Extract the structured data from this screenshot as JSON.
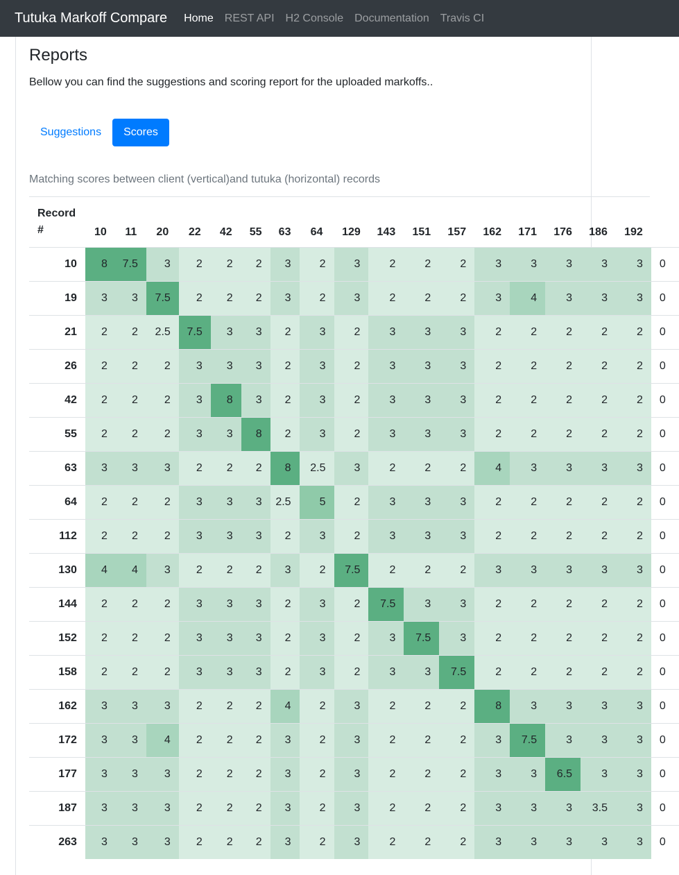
{
  "navbar": {
    "brand": "Tutuka Markoff Compare",
    "links": [
      {
        "label": "Home",
        "active": true
      },
      {
        "label": "REST API",
        "active": false
      },
      {
        "label": "H2 Console",
        "active": false
      },
      {
        "label": "Documentation",
        "active": false
      },
      {
        "label": "Travis CI",
        "active": false
      }
    ]
  },
  "page": {
    "title": "Reports",
    "description": "Bellow you can find the suggestions and scoring report for the uploaded markoffs..",
    "tabs": [
      {
        "label": "Suggestions",
        "active": false
      },
      {
        "label": "Scores",
        "active": true
      }
    ],
    "caption": "Matching scores between client (vertical)and tutuka (horizontal) records"
  },
  "colors": {
    "navbar_bg": "#343a40",
    "primary": "#007bff",
    "score_low": "#d7ece1",
    "score_mid": "#c2e0d0",
    "score_high": "#5baf82"
  },
  "table": {
    "corner_label": [
      "Record",
      "#"
    ],
    "columns": [
      "10",
      "11",
      "20",
      "22",
      "42",
      "55",
      "63",
      "64",
      "129",
      "143",
      "151",
      "157",
      "162",
      "171",
      "176",
      "186",
      "192"
    ],
    "rows": [
      {
        "id": "10",
        "scores": [
          "8",
          "7.5",
          "3",
          "2",
          "2",
          "2",
          "3",
          "2",
          "3",
          "2",
          "2",
          "2",
          "3",
          "3",
          "3",
          "3",
          "3"
        ],
        "extra": "0"
      },
      {
        "id": "19",
        "scores": [
          "3",
          "3",
          "7.5",
          "2",
          "2",
          "2",
          "3",
          "2",
          "3",
          "2",
          "2",
          "2",
          "3",
          "4",
          "3",
          "3",
          "3"
        ],
        "extra": "0"
      },
      {
        "id": "21",
        "scores": [
          "2",
          "2",
          "2.5",
          "7.5",
          "3",
          "3",
          "2",
          "3",
          "2",
          "3",
          "3",
          "3",
          "2",
          "2",
          "2",
          "2",
          "2"
        ],
        "extra": "0"
      },
      {
        "id": "26",
        "scores": [
          "2",
          "2",
          "2",
          "3",
          "3",
          "3",
          "2",
          "3",
          "2",
          "3",
          "3",
          "3",
          "2",
          "2",
          "2",
          "2",
          "2"
        ],
        "extra": "0"
      },
      {
        "id": "42",
        "scores": [
          "2",
          "2",
          "2",
          "3",
          "8",
          "3",
          "2",
          "3",
          "2",
          "3",
          "3",
          "3",
          "2",
          "2",
          "2",
          "2",
          "2"
        ],
        "extra": "0"
      },
      {
        "id": "55",
        "scores": [
          "2",
          "2",
          "2",
          "3",
          "3",
          "8",
          "2",
          "3",
          "2",
          "3",
          "3",
          "3",
          "2",
          "2",
          "2",
          "2",
          "2"
        ],
        "extra": "0"
      },
      {
        "id": "63",
        "scores": [
          "3",
          "3",
          "3",
          "2",
          "2",
          "2",
          "8",
          "2.5",
          "3",
          "2",
          "2",
          "2",
          "4",
          "3",
          "3",
          "3",
          "3"
        ],
        "extra": "0"
      },
      {
        "id": "64",
        "scores": [
          "2",
          "2",
          "2",
          "3",
          "3",
          "3",
          "2.5",
          "5",
          "2",
          "3",
          "3",
          "3",
          "2",
          "2",
          "2",
          "2",
          "2"
        ],
        "extra": "0"
      },
      {
        "id": "112",
        "scores": [
          "2",
          "2",
          "2",
          "3",
          "3",
          "3",
          "2",
          "3",
          "2",
          "3",
          "3",
          "3",
          "2",
          "2",
          "2",
          "2",
          "2"
        ],
        "extra": "0"
      },
      {
        "id": "130",
        "scores": [
          "4",
          "4",
          "3",
          "2",
          "2",
          "2",
          "3",
          "2",
          "7.5",
          "2",
          "2",
          "2",
          "3",
          "3",
          "3",
          "3",
          "3"
        ],
        "extra": "0"
      },
      {
        "id": "144",
        "scores": [
          "2",
          "2",
          "2",
          "3",
          "3",
          "3",
          "2",
          "3",
          "2",
          "7.5",
          "3",
          "3",
          "2",
          "2",
          "2",
          "2",
          "2"
        ],
        "extra": "0"
      },
      {
        "id": "152",
        "scores": [
          "2",
          "2",
          "2",
          "3",
          "3",
          "3",
          "2",
          "3",
          "2",
          "3",
          "7.5",
          "3",
          "2",
          "2",
          "2",
          "2",
          "2"
        ],
        "extra": "0"
      },
      {
        "id": "158",
        "scores": [
          "2",
          "2",
          "2",
          "3",
          "3",
          "3",
          "2",
          "3",
          "2",
          "3",
          "3",
          "7.5",
          "2",
          "2",
          "2",
          "2",
          "2"
        ],
        "extra": "0"
      },
      {
        "id": "162",
        "scores": [
          "3",
          "3",
          "3",
          "2",
          "2",
          "2",
          "4",
          "2",
          "3",
          "2",
          "2",
          "2",
          "8",
          "3",
          "3",
          "3",
          "3"
        ],
        "extra": "0"
      },
      {
        "id": "172",
        "scores": [
          "3",
          "3",
          "4",
          "2",
          "2",
          "2",
          "3",
          "2",
          "3",
          "2",
          "2",
          "2",
          "3",
          "7.5",
          "3",
          "3",
          "3"
        ],
        "extra": "0"
      },
      {
        "id": "177",
        "scores": [
          "3",
          "3",
          "3",
          "2",
          "2",
          "2",
          "3",
          "2",
          "3",
          "2",
          "2",
          "2",
          "3",
          "3",
          "6.5",
          "3",
          "3"
        ],
        "extra": "0"
      },
      {
        "id": "187",
        "scores": [
          "3",
          "3",
          "3",
          "2",
          "2",
          "2",
          "3",
          "2",
          "3",
          "2",
          "2",
          "2",
          "3",
          "3",
          "3",
          "3.5",
          "3"
        ],
        "extra": "0"
      },
      {
        "id": "263",
        "scores": [
          "3",
          "3",
          "3",
          "2",
          "2",
          "2",
          "3",
          "2",
          "3",
          "2",
          "2",
          "2",
          "3",
          "3",
          "3",
          "3",
          "3"
        ],
        "extra": "0"
      }
    ]
  }
}
